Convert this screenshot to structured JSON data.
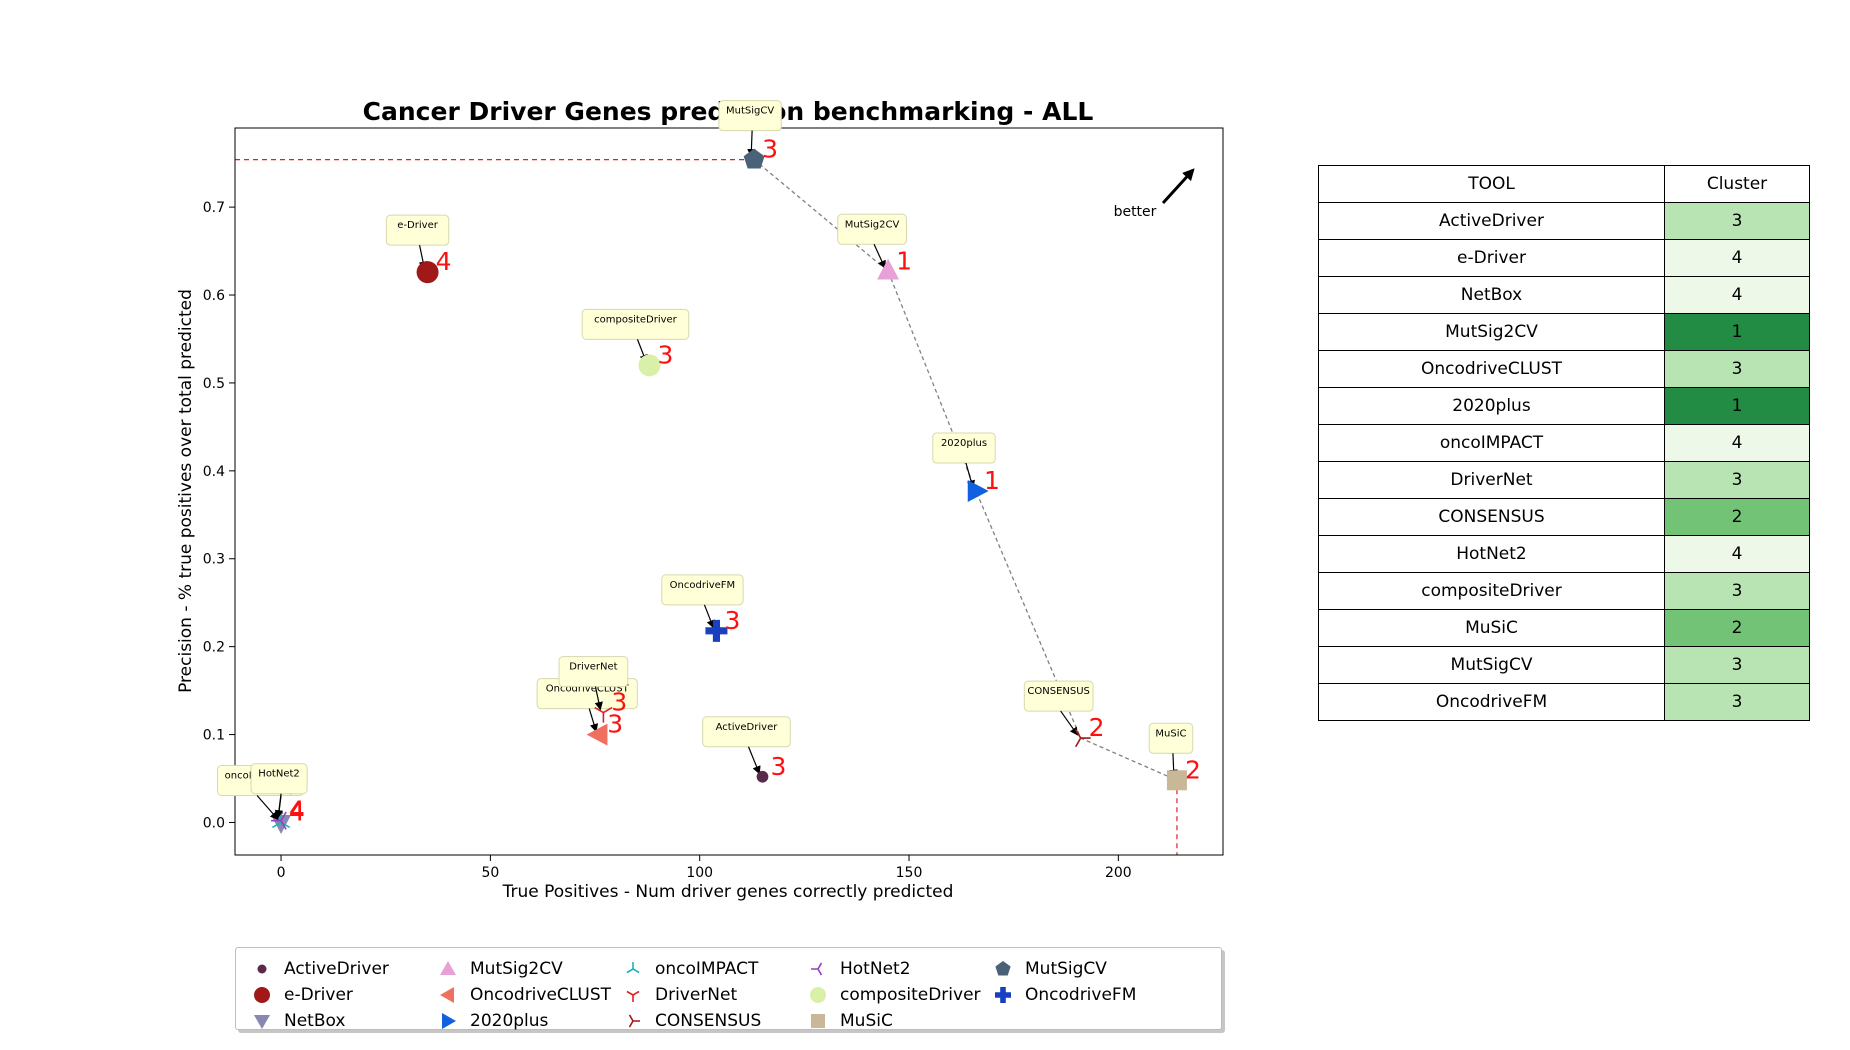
{
  "chart_data": {
    "type": "scatter",
    "title": "Cancer Driver Genes prediction benchmarking - ALL",
    "xlabel": "True Positives - Num driver genes correctly predicted",
    "ylabel": "Precision - % true positives over total predicted",
    "xlim": [
      -11,
      225
    ],
    "ylim": [
      -0.037,
      0.79
    ],
    "xticks": [
      0,
      50,
      100,
      150,
      200
    ],
    "yticks": [
      0.0,
      0.1,
      0.2,
      0.3,
      0.4,
      0.5,
      0.6,
      0.7
    ],
    "better_label": "better",
    "grid": false,
    "legend_position": "bottom",
    "points": [
      {
        "name": "ActiveDriver",
        "x": 115,
        "y": 0.052,
        "cluster": "3",
        "color": "#5a2a4a",
        "marker": "circle-small"
      },
      {
        "name": "e-Driver",
        "x": 35,
        "y": 0.626,
        "cluster": "4",
        "color": "#a01818",
        "marker": "circle"
      },
      {
        "name": "NetBox",
        "x": 0,
        "y": 0.0,
        "cluster": "4",
        "color": "#8888b0",
        "marker": "triangle-down"
      },
      {
        "name": "MutSig2CV",
        "x": 145,
        "y": 0.627,
        "cluster": "1",
        "color": "#e8a0d8",
        "marker": "triangle-up"
      },
      {
        "name": "OncodriveCLUST",
        "x": 76,
        "y": 0.1,
        "cluster": "3",
        "color": "#f07060",
        "marker": "triangle-left"
      },
      {
        "name": "2020plus",
        "x": 166,
        "y": 0.377,
        "cluster": "1",
        "color": "#1060e0",
        "marker": "triangle-right"
      },
      {
        "name": "oncoIMPACT",
        "x": 0,
        "y": 0.0,
        "cluster": "4",
        "color": "#20b0c0",
        "marker": "tri-down"
      },
      {
        "name": "DriverNet",
        "x": 77,
        "y": 0.125,
        "cluster": "3",
        "color": "#e02020",
        "marker": "tri-up"
      },
      {
        "name": "CONSENSUS",
        "x": 191,
        "y": 0.096,
        "cluster": "2",
        "color": "#a01818",
        "marker": "tri-left"
      },
      {
        "name": "HotNet2",
        "x": 0,
        "y": 0.002,
        "cluster": "4",
        "color": "#9040c0",
        "marker": "tri-right"
      },
      {
        "name": "compositeDriver",
        "x": 88,
        "y": 0.52,
        "cluster": "3",
        "color": "#d8f0a8",
        "marker": "circle"
      },
      {
        "name": "MuSiC",
        "x": 214,
        "y": 0.048,
        "cluster": "2",
        "color": "#c8b898",
        "marker": "square"
      },
      {
        "name": "MutSigCV",
        "x": 113,
        "y": 0.754,
        "cluster": "3",
        "color": "#4a6278",
        "marker": "pentagon"
      },
      {
        "name": "OncodriveFM",
        "x": 104,
        "y": 0.218,
        "cluster": "3",
        "color": "#1840c0",
        "marker": "plus"
      }
    ],
    "pareto_front": [
      "MutSigCV",
      "MutSig2CV",
      "2020plus",
      "CONSENSUS",
      "MuSiC"
    ],
    "threshold_lines": {
      "precision": 0.754,
      "true_positives": 214
    }
  },
  "legend": {
    "entries": [
      {
        "label": "ActiveDriver",
        "marker": "circle-small",
        "color": "#5a2a4a"
      },
      {
        "label": "e-Driver",
        "marker": "circle",
        "color": "#a01818"
      },
      {
        "label": "NetBox",
        "marker": "triangle-down",
        "color": "#8888b0"
      },
      {
        "label": "MutSig2CV",
        "marker": "triangle-up",
        "color": "#e8a0d8"
      },
      {
        "label": "OncodriveCLUST",
        "marker": "triangle-left",
        "color": "#f07060"
      },
      {
        "label": "2020plus",
        "marker": "triangle-right",
        "color": "#1060e0"
      },
      {
        "label": "oncoIMPACT",
        "marker": "tri-down",
        "color": "#20b0c0"
      },
      {
        "label": "DriverNet",
        "marker": "tri-up",
        "color": "#e02020"
      },
      {
        "label": "CONSENSUS",
        "marker": "tri-left",
        "color": "#a01818"
      },
      {
        "label": "HotNet2",
        "marker": "tri-right",
        "color": "#9040c0"
      },
      {
        "label": "compositeDriver",
        "marker": "circle",
        "color": "#d8f0a8"
      },
      {
        "label": "MuSiC",
        "marker": "square",
        "color": "#c8b898"
      },
      {
        "label": "MutSigCV",
        "marker": "pentagon",
        "color": "#4a6278"
      },
      {
        "label": "OncodriveFM",
        "marker": "plus",
        "color": "#1840c0"
      }
    ]
  },
  "cluster_table": {
    "headers": [
      "TOOL",
      "Cluster"
    ],
    "rows": [
      {
        "tool": "ActiveDriver",
        "cluster": "3"
      },
      {
        "tool": "e-Driver",
        "cluster": "4"
      },
      {
        "tool": "NetBox",
        "cluster": "4"
      },
      {
        "tool": "MutSig2CV",
        "cluster": "1"
      },
      {
        "tool": "OncodriveCLUST",
        "cluster": "3"
      },
      {
        "tool": "2020plus",
        "cluster": "1"
      },
      {
        "tool": "oncoIMPACT",
        "cluster": "4"
      },
      {
        "tool": "DriverNet",
        "cluster": "3"
      },
      {
        "tool": "CONSENSUS",
        "cluster": "2"
      },
      {
        "tool": "HotNet2",
        "cluster": "4"
      },
      {
        "tool": "compositeDriver",
        "cluster": "3"
      },
      {
        "tool": "MuSiC",
        "cluster": "2"
      },
      {
        "tool": "MutSigCV",
        "cluster": "3"
      },
      {
        "tool": "OncodriveFM",
        "cluster": "3"
      }
    ],
    "cluster_colors": {
      "1": "#228b44",
      "2": "#72c375",
      "3": "#b8e3b2",
      "4": "#edf8e9"
    }
  }
}
